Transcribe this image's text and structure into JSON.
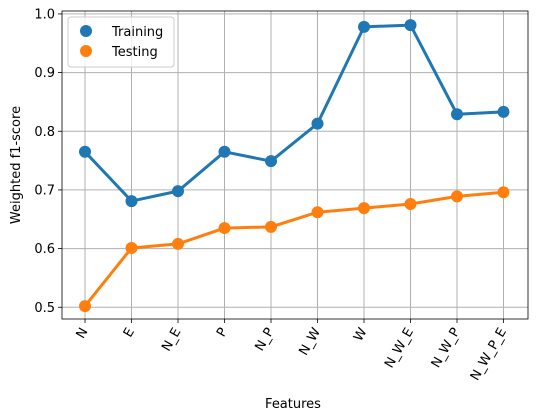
{
  "chart_data": {
    "type": "line",
    "title": "",
    "xlabel": "Features",
    "ylabel": "Weighted f1-score",
    "categories": [
      "N",
      "E",
      "N_E",
      "P",
      "N_P",
      "N_W",
      "W",
      "N_W_E",
      "N_W_P",
      "N_W_P_E"
    ],
    "ylim": [
      0.48,
      1.005
    ],
    "yticks": [
      0.5,
      0.6,
      0.7,
      0.8,
      0.9,
      1.0
    ],
    "ytick_labels": [
      "0.5",
      "0.6",
      "0.7",
      "0.8",
      "0.9",
      "1.0"
    ],
    "grid": true,
    "legend_position": "top-left",
    "series": [
      {
        "name": "Training",
        "color": "#1f77b4",
        "values": [
          0.765,
          0.681,
          0.698,
          0.765,
          0.749,
          0.813,
          0.978,
          0.981,
          0.829,
          0.833
        ]
      },
      {
        "name": "Testing",
        "color": "#ff7f0e",
        "values": [
          0.502,
          0.601,
          0.608,
          0.635,
          0.637,
          0.662,
          0.669,
          0.676,
          0.689,
          0.696
        ]
      }
    ]
  }
}
